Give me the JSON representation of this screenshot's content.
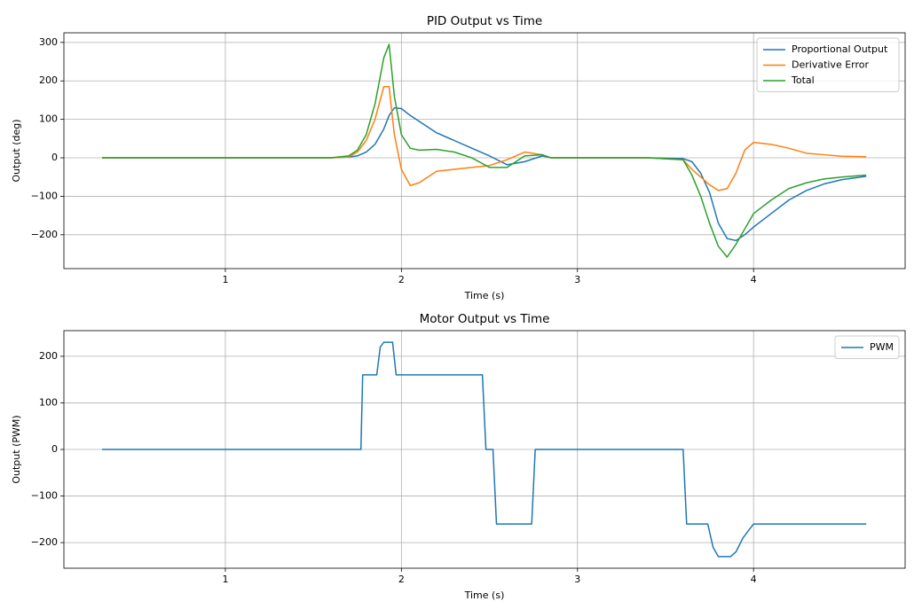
{
  "chart_data": [
    {
      "type": "line",
      "title": "PID Output vs Time",
      "x_label": "Time (s)",
      "y_label": "Output (deg)",
      "x": [
        0.3,
        1.6,
        1.7,
        1.75,
        1.8,
        1.85,
        1.9,
        1.93,
        1.96,
        2.0,
        2.05,
        2.1,
        2.2,
        2.3,
        2.4,
        2.5,
        2.6,
        2.7,
        2.8,
        2.85,
        3.0,
        3.4,
        3.6,
        3.65,
        3.7,
        3.75,
        3.8,
        3.85,
        3.9,
        3.95,
        4.0,
        4.1,
        4.2,
        4.3,
        4.4,
        4.5,
        4.64
      ],
      "series": [
        {
          "name": "Proportional Output",
          "color": "#1f77b4",
          "values": [
            0,
            0,
            2,
            5,
            15,
            35,
            75,
            110,
            130,
            128,
            110,
            95,
            65,
            45,
            25,
            5,
            -18,
            -10,
            5,
            0,
            0,
            0,
            -2,
            -10,
            -40,
            -90,
            -170,
            -210,
            -215,
            -200,
            -180,
            -145,
            -110,
            -85,
            -68,
            -57,
            -48
          ]
        },
        {
          "name": "Derivative Error",
          "color": "#ff7f0e",
          "values": [
            0,
            0,
            2,
            15,
            45,
            100,
            185,
            185,
            60,
            -30,
            -72,
            -65,
            -35,
            -30,
            -25,
            -20,
            -5,
            15,
            8,
            0,
            0,
            0,
            -5,
            -30,
            -50,
            -70,
            -85,
            -80,
            -40,
            20,
            40,
            35,
            25,
            12,
            8,
            4,
            3
          ]
        },
        {
          "name": "Total",
          "color": "#2ca02c",
          "values": [
            0,
            0,
            5,
            20,
            60,
            140,
            260,
            295,
            160,
            60,
            25,
            20,
            22,
            15,
            0,
            -25,
            -25,
            5,
            8,
            0,
            0,
            0,
            -5,
            -45,
            -100,
            -170,
            -230,
            -258,
            -225,
            -185,
            -145,
            -110,
            -80,
            -65,
            -55,
            -50,
            -45
          ]
        }
      ],
      "xlim": [
        0.083,
        4.861
      ],
      "ylim": [
        -288,
        325
      ],
      "xticks": [
        1,
        2,
        3,
        4
      ],
      "yticks": [
        {
          "value": -200,
          "label": "−200"
        },
        {
          "value": -100,
          "label": "−100"
        },
        0,
        100,
        200,
        300
      ],
      "grid": true,
      "legend": "upper-right"
    },
    {
      "type": "line",
      "title": "Motor Output vs Time",
      "x_label": "Time (s)",
      "y_label": "Output (PWM)",
      "x": [
        0.3,
        1.77,
        1.78,
        1.86,
        1.88,
        1.9,
        1.95,
        1.97,
        2.46,
        2.48,
        2.52,
        2.54,
        2.74,
        2.76,
        3.6,
        3.62,
        3.74,
        3.77,
        3.8,
        3.87,
        3.9,
        3.94,
        4.0,
        4.64
      ],
      "series": [
        {
          "name": "PWM",
          "color": "#1f77b4",
          "values": [
            0,
            0,
            160,
            160,
            220,
            230,
            230,
            160,
            160,
            0,
            0,
            -160,
            -160,
            0,
            0,
            -160,
            -160,
            -210,
            -230,
            -230,
            -220,
            -190,
            -160,
            -160
          ]
        }
      ],
      "xlim": [
        0.083,
        4.861
      ],
      "ylim": [
        -255,
        255
      ],
      "xticks": [
        1,
        2,
        3,
        4
      ],
      "yticks": [
        {
          "value": -200,
          "label": "−200"
        },
        {
          "value": -100,
          "label": "−100"
        },
        0,
        100,
        200
      ],
      "grid": true,
      "legend": "upper-right"
    }
  ]
}
